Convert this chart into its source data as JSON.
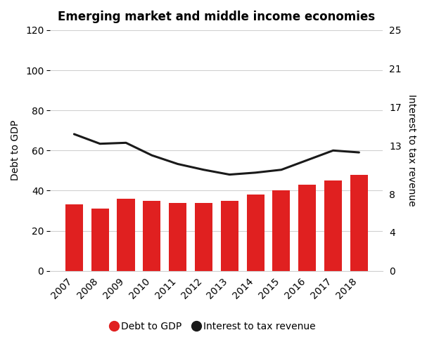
{
  "title": "Emerging market and middle income economies",
  "years": [
    2007,
    2008,
    2009,
    2010,
    2011,
    2012,
    2013,
    2014,
    2015,
    2016,
    2017,
    2018
  ],
  "debt_to_gdp": [
    33,
    31,
    36,
    35,
    34,
    34,
    35,
    38,
    40,
    43,
    45,
    48
  ],
  "interest_to_tax": [
    14.2,
    13.2,
    13.3,
    12.0,
    11.1,
    10.5,
    10.0,
    10.2,
    10.5,
    11.5,
    12.5,
    12.3
  ],
  "bar_color": "#e02020",
  "line_color": "#1a1a1a",
  "left_ylim": [
    0,
    120
  ],
  "left_yticks": [
    0,
    20,
    40,
    60,
    80,
    100,
    120
  ],
  "right_ylim": [
    0,
    25
  ],
  "right_yticks": [
    0,
    4,
    8,
    13,
    17,
    21,
    25
  ],
  "left_ylabel": "Debt to GDP",
  "right_ylabel": "Interest to tax revenue",
  "legend_label_bar": "Debt to GDP",
  "legend_label_line": "Interest to tax revenue",
  "background_color": "#ffffff",
  "grid_color": "#d0d0d0",
  "title_fontsize": 12,
  "axis_label_fontsize": 10,
  "tick_fontsize": 10
}
